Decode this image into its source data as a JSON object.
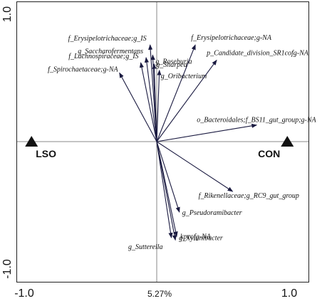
{
  "chart_data": {
    "type": "scatter",
    "title": "",
    "xlabel": "5.27%",
    "ylabel": "",
    "xlim": [
      -1.0,
      1.0
    ],
    "ylim": [
      -1.0,
      1.0
    ],
    "x_ticks": [
      "-1.0",
      "0.0",
      "1.0"
    ],
    "y_ticks": [
      "1.0",
      "0.0",
      "-1.0"
    ],
    "grid": false,
    "groups": [
      {
        "name": "LSO",
        "x": -0.94,
        "y": 0.0
      },
      {
        "name": "CON",
        "x": 0.98,
        "y": 0.0
      }
    ],
    "vectors": [
      {
        "name": "f_Erysipelotrichaceae;g_IS",
        "x": -0.05,
        "y": 0.76
      },
      {
        "name": "g_Roseburia",
        "x": -0.03,
        "y": 0.68
      },
      {
        "name": "g_Saccharofermentans",
        "x": -0.08,
        "y": 0.66
      },
      {
        "name": "f_Lachnospiraceae;g_IS",
        "x": -0.12,
        "y": 0.62
      },
      {
        "name": "g_Sharpea",
        "x": -0.02,
        "y": 0.61
      },
      {
        "name": "g_Oribacterium",
        "x": 0.02,
        "y": 0.56
      },
      {
        "name": "f_Spirochaetaceae;g-NA",
        "x": -0.28,
        "y": 0.54
      },
      {
        "name": "f_Erysipelotrichaceae;g-NA",
        "x": 0.29,
        "y": 0.76
      },
      {
        "name": "p_Candidate_division_SR1cofg-NA",
        "x": 0.45,
        "y": 0.64
      },
      {
        "name": "o_Bacteroidales;f_BS11_gut_group;g-NA",
        "x": 0.75,
        "y": 0.13
      },
      {
        "name": "f_Rikenellaceae;g_RC9_gut_group",
        "x": 0.57,
        "y": -0.41
      },
      {
        "name": "g_Pseudoramibacter",
        "x": 0.17,
        "y": -0.58
      },
      {
        "name": "kpcofg-NA",
        "x": 0.15,
        "y": -0.78
      },
      {
        "name": "g_Xylanibacter",
        "x": 0.14,
        "y": -0.81
      },
      {
        "name": "g_Sutterella",
        "x": 0.11,
        "y": -0.79
      }
    ]
  }
}
